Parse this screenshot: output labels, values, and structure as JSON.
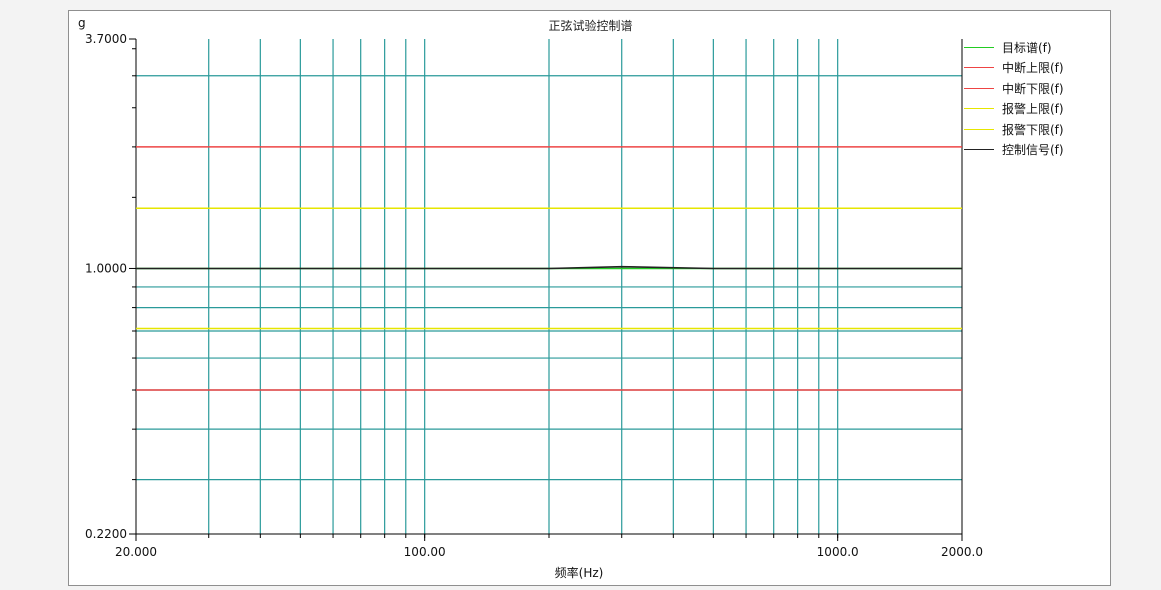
{
  "chart_data": {
    "type": "line",
    "title": "正弦试验控制谱",
    "ylabel": "g",
    "xlabel": "频率(Hz)",
    "x_scale": "log",
    "y_scale": "log",
    "xlim": [
      20,
      2000
    ],
    "ylim": [
      0.22,
      3.7
    ],
    "x_tick_labels": [
      "20.000",
      "100.00",
      "1000.0",
      "2000.0"
    ],
    "x_ticks": [
      20,
      100,
      1000,
      2000
    ],
    "y_tick_labels": [
      "3.7000",
      "1.0000",
      "0.2200"
    ],
    "y_ticks": [
      3.7,
      1.0,
      0.22
    ],
    "x_grid": [
      30,
      40,
      50,
      60,
      70,
      80,
      90,
      100,
      200,
      300,
      400,
      500,
      600,
      700,
      800,
      900,
      1000
    ],
    "y_grid": [
      3.0,
      0.9,
      0.8,
      0.7,
      0.6,
      0.5,
      0.4,
      0.3
    ],
    "grid": true,
    "legend_position": "right",
    "series": [
      {
        "name": "目标谱(f)",
        "color": "#22cc22",
        "x": [
          20,
          2000
        ],
        "y": [
          1.0,
          1.0
        ]
      },
      {
        "name": "中断上限(f)",
        "color": "#ee4444",
        "x": [
          20,
          2000
        ],
        "y": [
          2.0,
          2.0
        ]
      },
      {
        "name": "中断下限(f)",
        "color": "#ee4444",
        "x": [
          20,
          2000
        ],
        "y": [
          0.5,
          0.5
        ]
      },
      {
        "name": "报警上限(f)",
        "color": "#e6e600",
        "x": [
          20,
          2000
        ],
        "y": [
          1.41,
          1.41
        ]
      },
      {
        "name": "报警下限(f)",
        "color": "#e6e600",
        "x": [
          20,
          2000
        ],
        "y": [
          0.71,
          0.71
        ]
      },
      {
        "name": "控制信号(f)",
        "color": "#222222",
        "x": [
          20,
          30,
          50,
          100,
          200,
          300,
          500,
          1000,
          2000
        ],
        "y": [
          1.0,
          1.0,
          1.0,
          1.0,
          1.0,
          1.01,
          1.0,
          1.0,
          1.0
        ]
      }
    ]
  }
}
